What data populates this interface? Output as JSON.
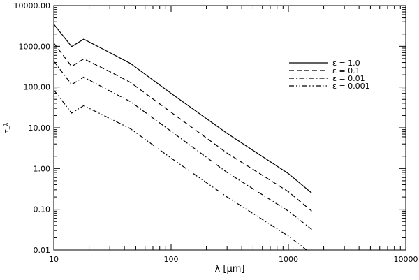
{
  "chart_data": {
    "type": "line",
    "title": "",
    "xlabel": "λ  [μm]",
    "ylabel": "τ_λ",
    "xscale": "log",
    "yscale": "log",
    "xlim": [
      10,
      10000
    ],
    "ylim": [
      0.01,
      10000
    ],
    "grid": false,
    "legend_position": "top-right",
    "x_ticks": [
      "10",
      "100",
      "1000",
      "10000"
    ],
    "y_ticks": [
      "0.01",
      "0.10",
      "1.00",
      "10.00",
      "100.00",
      "1000.00",
      "10000.00"
    ],
    "series": [
      {
        "name": "ε = 1.0",
        "dash": "solid",
        "x": [
          10,
          14.2,
          18,
          30,
          45,
          100,
          300,
          1000,
          1580
        ],
        "y": [
          3500,
          980,
          1500,
          700,
          380,
          70,
          7.3,
          0.75,
          0.25
        ]
      },
      {
        "name": "ε = 0.1",
        "dash": "dashed",
        "x": [
          10,
          14.2,
          18,
          30,
          45,
          100,
          300,
          1000,
          1580
        ],
        "y": [
          1200,
          320,
          490,
          240,
          130,
          24,
          2.4,
          0.27,
          0.09
        ]
      },
      {
        "name": "ε = 0.01",
        "dash": "dash-dot",
        "x": [
          10,
          14.2,
          18,
          30,
          45,
          100,
          300,
          1000,
          1580
        ],
        "y": [
          430,
          115,
          175,
          80,
          44,
          8.2,
          0.8,
          0.09,
          0.032
        ]
      },
      {
        "name": "ε = 0.001",
        "dash": "dash-dot-dot",
        "x": [
          10,
          14.2,
          18,
          30,
          45,
          100,
          300,
          1000,
          1500
        ],
        "y": [
          85,
          23,
          35,
          17,
          9.5,
          1.8,
          0.2,
          0.022,
          0.009
        ]
      }
    ]
  }
}
